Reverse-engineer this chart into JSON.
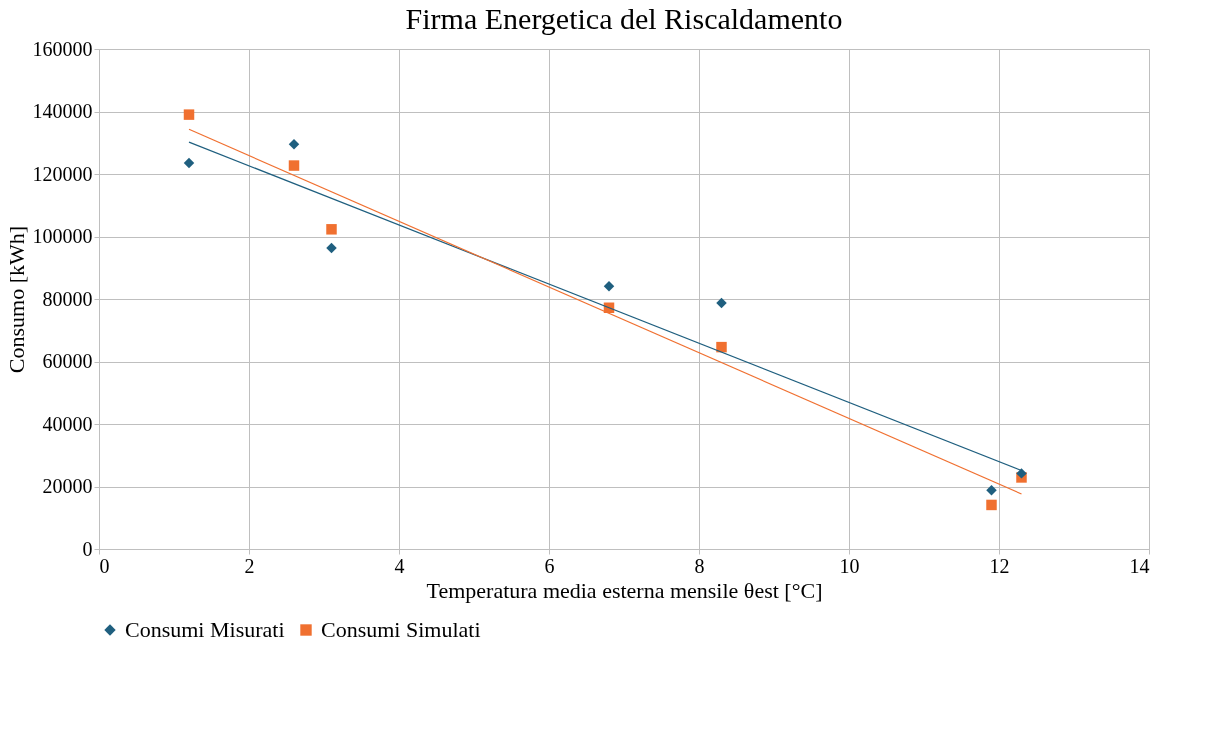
{
  "chart_data": {
    "type": "scatter",
    "title": "Firma Energetica del Riscaldamento",
    "xlabel": "Temperatura media esterna mensile θest [°C]",
    "ylabel": "Consumo [kWh]",
    "xlim": [
      0,
      14
    ],
    "xticks": [
      0,
      2,
      4,
      6,
      8,
      10,
      12,
      14
    ],
    "ylim": [
      0,
      160000
    ],
    "yticks": [
      0,
      20000,
      40000,
      60000,
      80000,
      100000,
      120000,
      140000,
      160000
    ],
    "grid": true,
    "legend": "bottom",
    "series": [
      {
        "name": "Consumi Misurati",
        "marker": "diamond",
        "color": "#1f5f7f",
        "x": [
          1.2,
          2.6,
          3.1,
          6.8,
          8.3,
          11.9,
          12.3
        ],
        "values": [
          123500,
          129500,
          96300,
          84100,
          78700,
          18800,
          24200
        ]
      },
      {
        "name": "Consumi Simulati",
        "marker": "square",
        "color": "#f07030",
        "x": [
          1.2,
          2.6,
          3.1,
          6.8,
          8.3,
          11.9,
          12.3
        ],
        "values": [
          139000,
          122700,
          102300,
          77200,
          64600,
          14100,
          22900
        ]
      },
      {
        "type": "line",
        "line_style": "solid",
        "color": "#1f5f7f",
        "x": [
          1.2,
          12.3
        ],
        "values": [
          130200,
          25100
        ]
      },
      {
        "type": "line",
        "line_style": "solid",
        "color": "#f07030",
        "x": [
          1.2,
          12.3
        ],
        "values": [
          134300,
          17600
        ]
      }
    ]
  }
}
